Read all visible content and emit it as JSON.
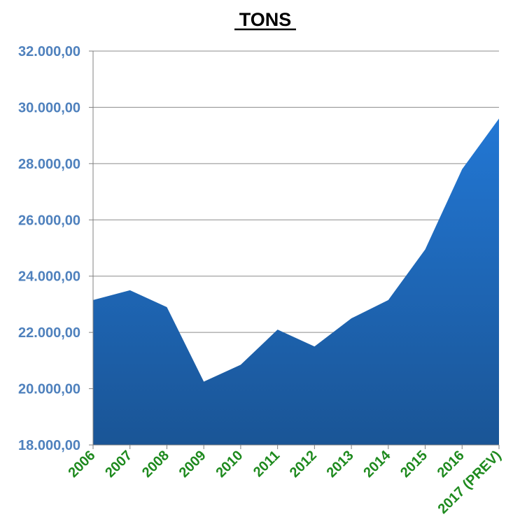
{
  "chart_data": {
    "type": "area",
    "title": "TONS",
    "xlabel": "",
    "ylabel": "",
    "categories": [
      "2006",
      "2007",
      "2008",
      "2009",
      "2010",
      "2011",
      "2012",
      "2013",
      "2014",
      "2015",
      "2016",
      "2017 (PREV)"
    ],
    "values": [
      23150,
      23500,
      22900,
      20250,
      20850,
      22100,
      21500,
      22500,
      23150,
      24950,
      27800,
      29600
    ],
    "ylim": [
      18000,
      32000
    ],
    "yticks": [
      "18.000,00",
      "20.000,00",
      "22.000,00",
      "24.000,00",
      "26.000,00",
      "28.000,00",
      "30.000,00",
      "32.000,00"
    ],
    "grid": true,
    "colors": {
      "area_top": "#2277d4",
      "area_bottom": "#1a5596",
      "ytick_text": "#4f81bd",
      "xtick_text": "#1e8a1e",
      "gridline": "#8c8c8c"
    }
  }
}
